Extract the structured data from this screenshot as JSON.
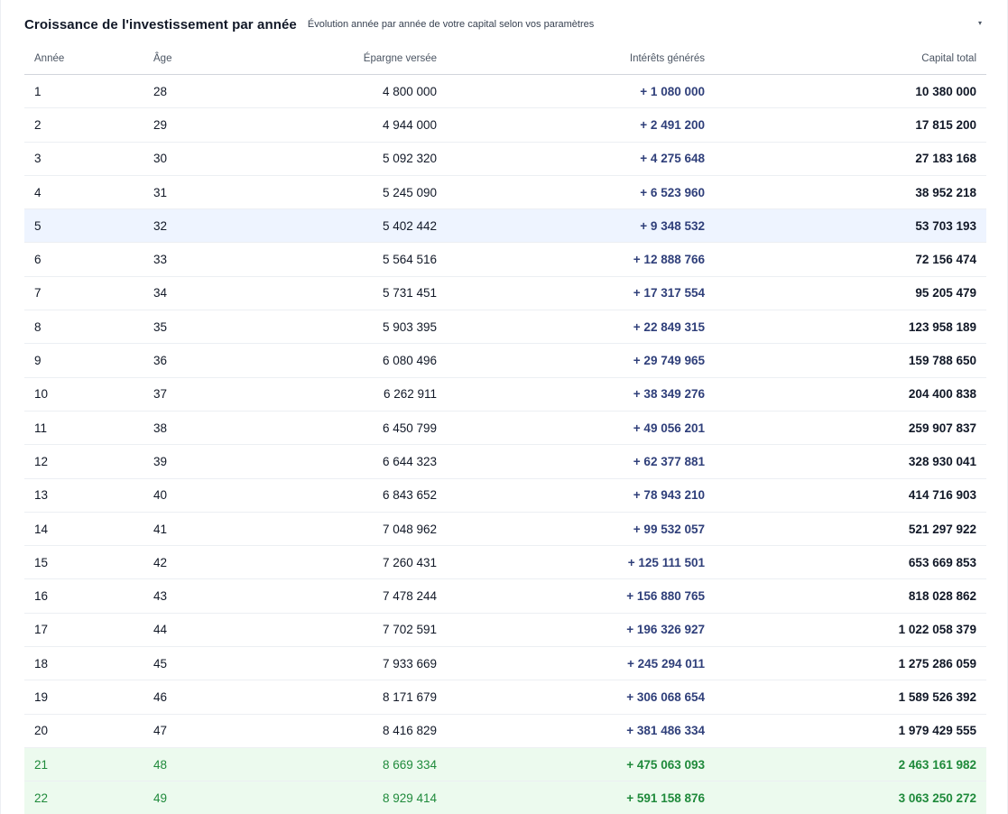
{
  "header": {
    "title": "Croissance de l'investissement par année",
    "subtitle": "Évolution année par année de votre capital selon vos paramètres",
    "toggle_icon": "▾"
  },
  "columns": {
    "year": "Année",
    "age": "Âge",
    "savings": "Épargne versée",
    "interest": "Intérêts générés",
    "capital": "Capital total"
  },
  "rows": [
    {
      "year": "1",
      "age": "28",
      "savings": "4 800 000",
      "interest": "+ 1 080 000",
      "capital": "10 380 000"
    },
    {
      "year": "2",
      "age": "29",
      "savings": "4 944 000",
      "interest": "+ 2 491 200",
      "capital": "17 815 200"
    },
    {
      "year": "3",
      "age": "30",
      "savings": "5 092 320",
      "interest": "+ 4 275 648",
      "capital": "27 183 168"
    },
    {
      "year": "4",
      "age": "31",
      "savings": "5 245 090",
      "interest": "+ 6 523 960",
      "capital": "38 952 218"
    },
    {
      "year": "5",
      "age": "32",
      "savings": "5 402 442",
      "interest": "+ 9 348 532",
      "capital": "53 703 193"
    },
    {
      "year": "6",
      "age": "33",
      "savings": "5 564 516",
      "interest": "+ 12 888 766",
      "capital": "72 156 474"
    },
    {
      "year": "7",
      "age": "34",
      "savings": "5 731 451",
      "interest": "+ 17 317 554",
      "capital": "95 205 479"
    },
    {
      "year": "8",
      "age": "35",
      "savings": "5 903 395",
      "interest": "+ 22 849 315",
      "capital": "123 958 189"
    },
    {
      "year": "9",
      "age": "36",
      "savings": "6 080 496",
      "interest": "+ 29 749 965",
      "capital": "159 788 650"
    },
    {
      "year": "10",
      "age": "37",
      "savings": "6 262 911",
      "interest": "+ 38 349 276",
      "capital": "204 400 838"
    },
    {
      "year": "11",
      "age": "38",
      "savings": "6 450 799",
      "interest": "+ 49 056 201",
      "capital": "259 907 837"
    },
    {
      "year": "12",
      "age": "39",
      "savings": "6 644 323",
      "interest": "+ 62 377 881",
      "capital": "328 930 041"
    },
    {
      "year": "13",
      "age": "40",
      "savings": "6 843 652",
      "interest": "+ 78 943 210",
      "capital": "414 716 903"
    },
    {
      "year": "14",
      "age": "41",
      "savings": "7 048 962",
      "interest": "+ 99 532 057",
      "capital": "521 297 922"
    },
    {
      "year": "15",
      "age": "42",
      "savings": "7 260 431",
      "interest": "+ 125 111 501",
      "capital": "653 669 853"
    },
    {
      "year": "16",
      "age": "43",
      "savings": "7 478 244",
      "interest": "+ 156 880 765",
      "capital": "818 028 862"
    },
    {
      "year": "17",
      "age": "44",
      "savings": "7 702 591",
      "interest": "+ 196 326 927",
      "capital": "1 022 058 379"
    },
    {
      "year": "18",
      "age": "45",
      "savings": "7 933 669",
      "interest": "+ 245 294 011",
      "capital": "1 275 286 059"
    },
    {
      "year": "19",
      "age": "46",
      "savings": "8 171 679",
      "interest": "+ 306 068 654",
      "capital": "1 589 526 392"
    },
    {
      "year": "20",
      "age": "47",
      "savings": "8 416 829",
      "interest": "+ 381 486 334",
      "capital": "1 979 429 555"
    },
    {
      "year": "21",
      "age": "48",
      "savings": "8 669 334",
      "interest": "+ 475 063 093",
      "capital": "2 463 161 982"
    },
    {
      "year": "22",
      "age": "49",
      "savings": "8 929 414",
      "interest": "+ 591 158 876",
      "capital": "3 063 250 272"
    }
  ],
  "colors": {
    "hover_row_bg": "#eef4ff",
    "milestone_row_bg": "#ecfaee",
    "milestone_text": "#1f8a3b",
    "interest_text": "#2f3f7a"
  }
}
